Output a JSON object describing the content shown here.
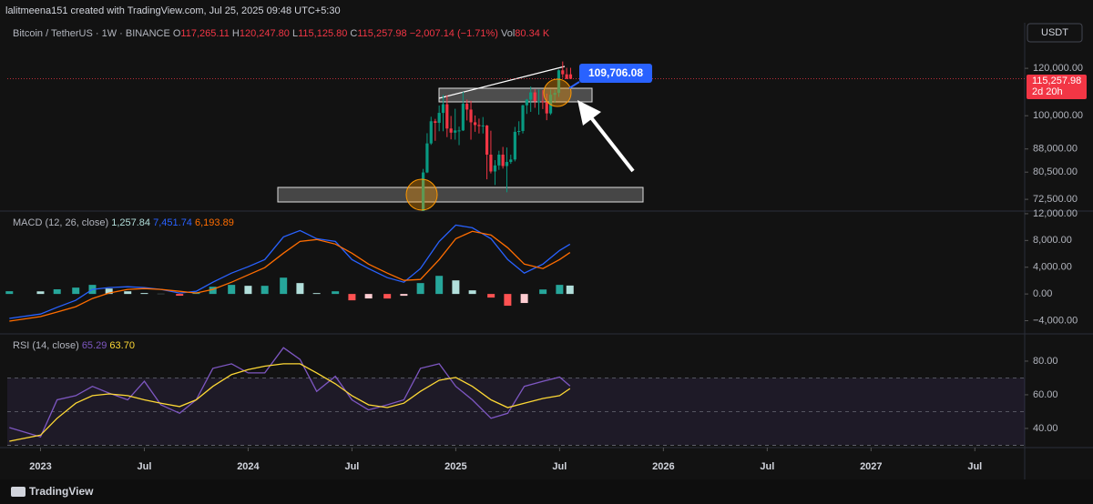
{
  "header": {
    "author_line": "lalitmeena151 created with TradingView.com, Jul 25, 2025 09:48 UTC+5:30",
    "currency_button": "USDT",
    "logo": "TradingView"
  },
  "chart_data": [
    {
      "type": "candlestick",
      "title": "Bitcoin / TetherUS · 1W · BINANCE",
      "legend": [
        {
          "label": "O",
          "value": "117,265.11"
        },
        {
          "label": "H",
          "value": "120,247.80"
        },
        {
          "label": "L",
          "value": "115,125.80"
        },
        {
          "label": "C",
          "value": "115,257.98"
        }
      ],
      "change": "−2,007.14 (−1.71%)",
      "volume_label": "Vol",
      "volume": "80.34 K",
      "last_price_label": "115,257.98",
      "countdown": "2d 20h",
      "annotation": "109,706.08",
      "up_color": "#089981",
      "down_color": "#f23645",
      "log": true,
      "x": [
        2024.843,
        2024.862,
        2024.881,
        2024.901,
        2024.92,
        2024.939,
        2024.958,
        2024.977,
        2024.997,
        2025.016,
        2025.035,
        2025.054,
        2025.073,
        2025.093,
        2025.112,
        2025.131,
        2025.15,
        2025.169,
        2025.189,
        2025.208,
        2025.227,
        2025.246,
        2025.265,
        2025.285,
        2025.304,
        2025.323,
        2025.342,
        2025.361,
        2025.381,
        2025.4,
        2025.419,
        2025.438,
        2025.457,
        2025.477,
        2025.496,
        2025.515,
        2025.534,
        2025.553
      ],
      "open": [
        68800,
        80400,
        89900,
        97900,
        97300,
        101100,
        104500,
        95200,
        93700,
        94500,
        94500,
        104700,
        102400,
        97500,
        96500,
        96100,
        96300,
        86100,
        80700,
        82600,
        86100,
        82400,
        83700,
        84500,
        94000,
        94300,
        104100,
        106400,
        109400,
        105700,
        105700,
        105500,
        100900,
        108400,
        109200,
        119100,
        117265.11,
        117265.11
      ],
      "high": [
        81500,
        93500,
        99600,
        98800,
        104000,
        108400,
        108200,
        99900,
        102700,
        95900,
        109600,
        106400,
        105900,
        100100,
        98900,
        99500,
        96500,
        94400,
        84300,
        87400,
        88700,
        88500,
        86100,
        95800,
        97900,
        104300,
        106700,
        111900,
        110700,
        110600,
        110400,
        108900,
        110600,
        110500,
        119500,
        123200,
        120247.8,
        120247.8
      ],
      "low": [
        66800,
        80200,
        89400,
        90800,
        94200,
        94200,
        92100,
        91300,
        91200,
        89300,
        94300,
        98200,
        91200,
        94000,
        93400,
        93400,
        78300,
        80100,
        76600,
        81200,
        81600,
        74500,
        83100,
        83900,
        92800,
        93400,
        100700,
        101500,
        103100,
        100400,
        102600,
        98300,
        100300,
        105100,
        107500,
        115700,
        115125.8,
        115125.8
      ],
      "close": [
        80400,
        89900,
        97900,
        97300,
        101100,
        104500,
        95200,
        93700,
        94500,
        94500,
        104700,
        102400,
        97500,
        96500,
        96100,
        96300,
        86100,
        80700,
        82600,
        86100,
        82400,
        83700,
        84500,
        94000,
        94300,
        104100,
        106400,
        109400,
        105700,
        105700,
        105500,
        100900,
        108400,
        109200,
        119100,
        117300,
        115257.98,
        115257.98
      ],
      "xlim": [
        2022.84,
        2027.74
      ],
      "xticks": [
        {
          "value": 2023,
          "label": "2023"
        },
        {
          "value": 2023.5,
          "label": "Jul"
        },
        {
          "value": 2024,
          "label": "2024"
        },
        {
          "value": 2024.5,
          "label": "Jul"
        },
        {
          "value": 2025,
          "label": "2025"
        },
        {
          "value": 2025.5,
          "label": "Jul"
        },
        {
          "value": 2026,
          "label": "2026"
        },
        {
          "value": 2026.5,
          "label": "Jul"
        },
        {
          "value": 2027,
          "label": "2027"
        },
        {
          "value": 2027.5,
          "label": "Jul"
        }
      ],
      "ylim": [
        69300,
        143000
      ],
      "yticks": [
        {
          "value": 72500,
          "label": "72,500.00"
        },
        {
          "value": 80500,
          "label": "80,500.00"
        },
        {
          "value": 88000,
          "label": "88,000.00"
        },
        {
          "value": 100000,
          "label": "100,000.00"
        },
        {
          "value": 120000,
          "label": "120,000.00"
        }
      ]
    },
    {
      "type": "macd",
      "title": "MACD (12, 26, close)",
      "legend_values": [
        "1,257.84",
        "7,451.74",
        "6,193.89"
      ],
      "x": [
        2022.85,
        2023.0,
        2023.08,
        2023.17,
        2023.25,
        2023.33,
        2023.42,
        2023.5,
        2023.58,
        2023.67,
        2023.75,
        2023.83,
        2023.92,
        2024.0,
        2024.08,
        2024.17,
        2024.25,
        2024.33,
        2024.42,
        2024.5,
        2024.58,
        2024.67,
        2024.75,
        2024.83,
        2024.92,
        2025.0,
        2025.08,
        2025.17,
        2025.25,
        2025.33,
        2025.42,
        2025.5,
        2025.55
      ],
      "series": [
        {
          "style": "histogram",
          "colors": [
            "#26a69a",
            "#b2dfdb",
            "#ff5252",
            "#ffcdd2"
          ],
          "values": [
            410,
            390,
            700,
            950,
            1360,
            810,
            400,
            140,
            30,
            -260,
            260,
            1080,
            1360,
            1220,
            1220,
            2440,
            1630,
            130,
            400,
            -950,
            -670,
            -680,
            -270,
            1630,
            2710,
            2030,
            540,
            -540,
            -1760,
            -1350,
            670,
            1360,
            1257.84
          ]
        },
        {
          "style": "line",
          "color": "#2962ff",
          "values": [
            -3660,
            -3000,
            -2000,
            -950,
            680,
            950,
            1080,
            950,
            680,
            140,
            400,
            1760,
            3120,
            4070,
            5150,
            8540,
            9490,
            8270,
            7860,
            5150,
            3800,
            2440,
            1760,
            3800,
            7860,
            10300,
            9900,
            8270,
            5150,
            3120,
            4470,
            6510,
            7451.74
          ]
        },
        {
          "style": "line",
          "color": "#ff6d00",
          "values": [
            -4070,
            -3390,
            -2700,
            -1900,
            -680,
            140,
            680,
            810,
            680,
            400,
            140,
            680,
            1760,
            2850,
            3930,
            6100,
            7860,
            8140,
            7460,
            6100,
            4470,
            3120,
            2030,
            2170,
            5150,
            8270,
            9360,
            8810,
            6910,
            4470,
            3800,
            5150,
            6193.89
          ]
        }
      ],
      "ylim": [
        -5970,
        12400
      ],
      "yticks": [
        {
          "value": 12000,
          "label": "12,000.00"
        },
        {
          "value": 8000,
          "label": "8,000.00"
        },
        {
          "value": 4000,
          "label": "4,000.00"
        },
        {
          "value": 0,
          "label": "0.00"
        },
        {
          "value": -4000,
          "label": "−4,000.00"
        }
      ]
    },
    {
      "type": "rsi",
      "title": "RSI (14, close)",
      "legend_values": [
        "65.29",
        "63.70"
      ],
      "x": [
        2022.85,
        2023.0,
        2023.08,
        2023.17,
        2023.25,
        2023.33,
        2023.42,
        2023.5,
        2023.58,
        2023.67,
        2023.75,
        2023.83,
        2023.92,
        2024.0,
        2024.08,
        2024.17,
        2024.25,
        2024.33,
        2024.42,
        2024.5,
        2024.58,
        2024.67,
        2024.75,
        2024.83,
        2024.92,
        2025.0,
        2025.08,
        2025.17,
        2025.25,
        2025.33,
        2025.42,
        2025.5,
        2025.55
      ],
      "series": [
        {
          "style": "line",
          "color": "#7e57c2",
          "values": [
            40.5,
            35,
            57,
            59.5,
            65,
            61,
            57,
            68,
            54,
            49,
            57,
            75.7,
            78.4,
            73,
            73,
            88,
            81,
            62,
            71,
            57,
            51,
            54,
            57,
            75.7,
            78.4,
            65,
            57,
            46,
            49,
            65,
            68,
            70.5,
            65.29
          ]
        },
        {
          "style": "line",
          "color": "#fdd835",
          "values": [
            32.4,
            36,
            46,
            55,
            59.5,
            60.5,
            59.5,
            57,
            55,
            53,
            57,
            65,
            72,
            75,
            77,
            78.4,
            78.4,
            73,
            66.5,
            59.5,
            54,
            52.4,
            55,
            62,
            68.6,
            70.3,
            65,
            57,
            52.4,
            55,
            57.8,
            59.5,
            63.7
          ]
        }
      ],
      "bands": [
        70,
        50,
        30
      ],
      "band_fill": "rgba(126,87,194,0.12)",
      "ylim": [
        28.6,
        96.2
      ],
      "yticks": [
        {
          "value": 80,
          "label": "80.00"
        },
        {
          "value": 60,
          "label": "60.00"
        },
        {
          "value": 40,
          "label": "40.00"
        }
      ]
    }
  ]
}
